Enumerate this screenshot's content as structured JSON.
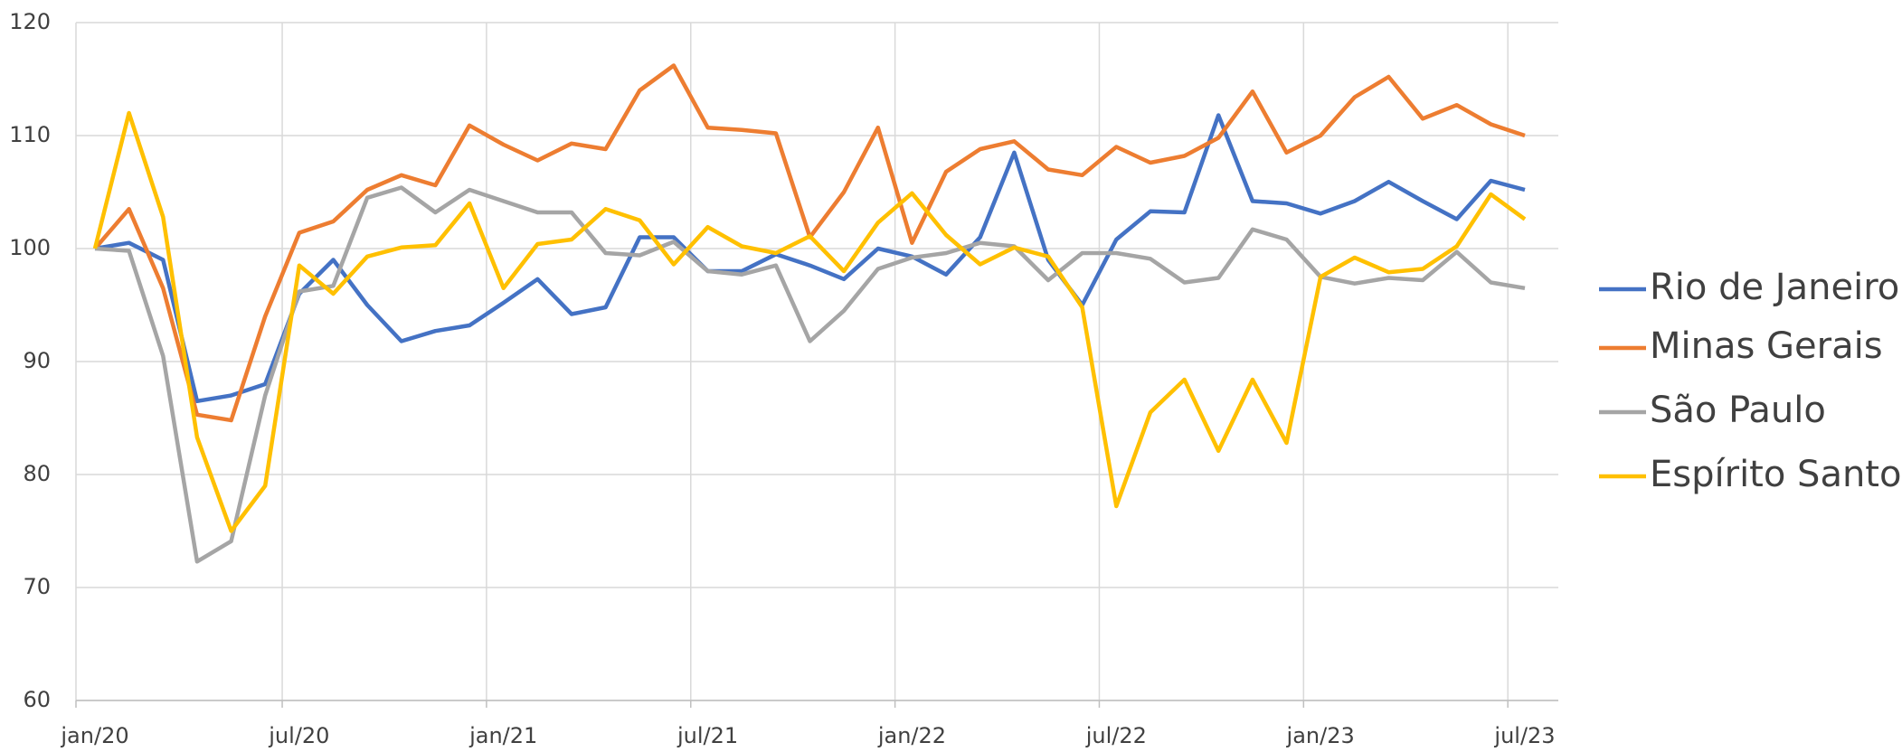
{
  "chart_data": {
    "type": "line",
    "categories": [
      "jan/20",
      null,
      null,
      null,
      null,
      null,
      "jul/20",
      null,
      null,
      null,
      null,
      null,
      "jan/21",
      null,
      null,
      null,
      null,
      null,
      "jul/21",
      null,
      null,
      null,
      null,
      null,
      "jan/22",
      null,
      null,
      null,
      null,
      null,
      "jul/22",
      null,
      null,
      null,
      null,
      null,
      "jan/23",
      null,
      null,
      null,
      null,
      null,
      "jul/23"
    ],
    "series": [
      {
        "name": "Rio de Janeiro",
        "color": "#4472c4",
        "values": [
          100,
          100.5,
          99,
          86.5,
          87,
          88,
          96,
          99,
          95,
          91.8,
          92.7,
          93.2,
          95.2,
          97.3,
          94.2,
          94.8,
          101,
          101,
          98,
          98,
          99.5,
          98.5,
          97.3,
          100,
          99.3,
          97.7,
          101,
          108.5,
          99,
          95,
          100.8,
          103.3,
          103.2,
          111.8,
          104.2,
          104,
          103.1,
          104.2,
          105.9,
          104.2,
          102.6,
          106,
          105.2
        ]
      },
      {
        "name": "Minas Gerais",
        "color": "#ed7d31",
        "values": [
          100,
          103.5,
          96.5,
          85.3,
          84.8,
          94,
          101.4,
          102.4,
          105.2,
          106.5,
          105.6,
          110.9,
          109.2,
          107.8,
          109.3,
          108.8,
          114,
          116.2,
          110.7,
          110.5,
          110.2,
          101,
          105,
          110.7,
          100.5,
          106.8,
          108.8,
          109.5,
          107,
          106.5,
          109,
          107.6,
          108.2,
          109.8,
          113.9,
          108.5,
          110,
          113.4,
          115.2,
          111.5,
          112.7,
          111,
          110
        ]
      },
      {
        "name": "São Paulo",
        "color": "#a5a5a5",
        "values": [
          100,
          99.8,
          90.5,
          72.3,
          74.1,
          87,
          96.2,
          96.7,
          104.5,
          105.4,
          103.2,
          105.2,
          104.2,
          103.2,
          103.2,
          99.6,
          99.4,
          100.6,
          98,
          97.7,
          98.5,
          91.8,
          94.5,
          98.2,
          99.2,
          99.6,
          100.5,
          100.2,
          97.2,
          99.6,
          99.6,
          99.1,
          97,
          97.4,
          101.7,
          100.8,
          97.5,
          96.9,
          97.4,
          97.2,
          99.7,
          97,
          96.5
        ]
      },
      {
        "name": "Espírito Santo",
        "color": "#ffc000",
        "values": [
          100,
          112,
          102.8,
          83.3,
          75,
          79,
          98.5,
          96,
          99.3,
          100.1,
          100.3,
          104,
          96.5,
          100.4,
          100.8,
          103.5,
          102.5,
          98.6,
          101.9,
          100.2,
          99.6,
          101.1,
          98,
          102.3,
          104.9,
          101.2,
          98.6,
          100.1,
          99.3,
          94.8,
          77.2,
          85.5,
          88.4,
          82.1,
          88.4,
          82.8,
          97.5,
          99.2,
          97.9,
          98.2,
          100.2,
          104.8,
          102.6
        ]
      }
    ],
    "ylim": [
      60,
      120
    ],
    "yticks": [
      60,
      70,
      80,
      90,
      100,
      110,
      120
    ],
    "grid": true,
    "legend": "right"
  }
}
